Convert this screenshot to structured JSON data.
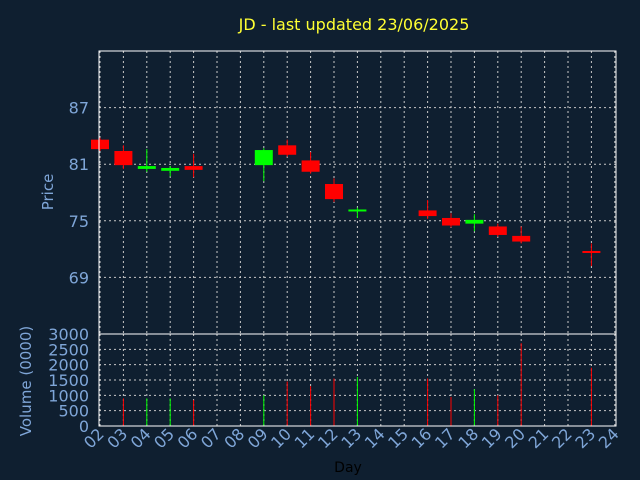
{
  "chart_data": {
    "type": "candlestick",
    "title": "JD - last updated 23/06/2025",
    "xlabel": "Day",
    "price_panel": {
      "ylabel": "Price",
      "ylim": [
        63,
        93
      ],
      "yticks": [
        69,
        75,
        81,
        87
      ]
    },
    "volume_panel": {
      "ylabel": "Volume (0000)",
      "ylim": [
        0,
        3000
      ],
      "yticks": [
        0,
        500,
        1000,
        1500,
        2000,
        2500,
        3000
      ]
    },
    "x_ticks": [
      "02",
      "03",
      "04",
      "05",
      "06",
      "07",
      "08",
      "09",
      "10",
      "11",
      "12",
      "13",
      "14",
      "15",
      "16",
      "17",
      "18",
      "19",
      "20",
      "21",
      "22",
      "23",
      "24"
    ],
    "grid": true,
    "colors": {
      "background": "#0f1f30",
      "axis": "#ffffff",
      "grid": "#c8c8c8",
      "up": "#00ff00",
      "down": "#ff0000",
      "title": "#ffff33",
      "ticks": "#7fa6d8"
    },
    "candles": [
      {
        "day": "02",
        "open": 83.6,
        "close": 82.6,
        "high": 83.8,
        "low": 82.4,
        "volume": 0
      },
      {
        "day": "03",
        "open": 82.4,
        "close": 80.9,
        "high": 83.0,
        "low": 80.5,
        "volume": 900
      },
      {
        "day": "04",
        "open": 80.5,
        "close": 80.8,
        "high": 82.6,
        "low": 80.2,
        "volume": 900
      },
      {
        "day": "05",
        "open": 80.3,
        "close": 80.6,
        "high": 80.8,
        "low": 79.7,
        "volume": 900
      },
      {
        "day": "06",
        "open": 80.8,
        "close": 80.4,
        "high": 82.1,
        "low": 79.6,
        "volume": 850
      },
      {
        "day": "09",
        "open": 80.9,
        "close": 82.5,
        "high": 82.7,
        "low": 79.2,
        "volume": 1000
      },
      {
        "day": "10",
        "open": 83.0,
        "close": 82.0,
        "high": 83.6,
        "low": 81.8,
        "volume": 1450
      },
      {
        "day": "11",
        "open": 81.4,
        "close": 80.2,
        "high": 82.3,
        "low": 80.0,
        "volume": 1300
      },
      {
        "day": "12",
        "open": 78.9,
        "close": 77.3,
        "high": 79.5,
        "low": 77.0,
        "volume": 1550
      },
      {
        "day": "13",
        "open": 76.0,
        "close": 76.2,
        "high": 76.4,
        "low": 75.3,
        "volume": 1600
      },
      {
        "day": "16",
        "open": 76.1,
        "close": 75.5,
        "high": 77.2,
        "low": 75.2,
        "volume": 1550
      },
      {
        "day": "17",
        "open": 75.3,
        "close": 74.5,
        "high": 75.8,
        "low": 74.3,
        "volume": 950
      },
      {
        "day": "18",
        "open": 74.7,
        "close": 75.1,
        "high": 75.7,
        "low": 73.9,
        "volume": 1200
      },
      {
        "day": "19",
        "open": 74.4,
        "close": 73.5,
        "high": 74.7,
        "low": 73.3,
        "volume": 1000
      },
      {
        "day": "20",
        "open": 73.4,
        "close": 72.8,
        "high": 74.4,
        "low": 72.6,
        "volume": 2700
      },
      {
        "day": "23",
        "open": 71.8,
        "close": 71.6,
        "high": 72.6,
        "low": 70.2,
        "volume": 1900
      }
    ]
  }
}
